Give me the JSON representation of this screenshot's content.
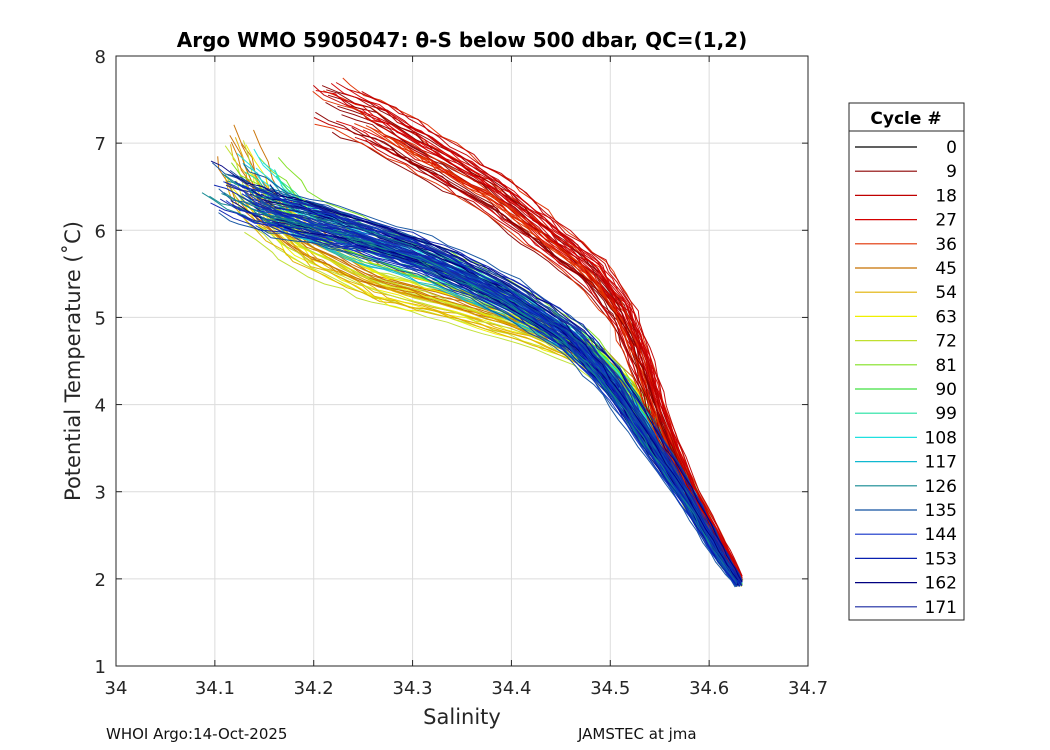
{
  "chart_data": {
    "type": "line",
    "title": "Argo WMO 5905047: θ-S below 500 dbar,  QC=(1,2)",
    "xlabel": "Salinity",
    "ylabel": "Potential Temperature (˚C)",
    "xlim": [
      34.0,
      34.7
    ],
    "ylim": [
      1,
      8
    ],
    "xticks": [
      34,
      34.1,
      34.2,
      34.3,
      34.4,
      34.5,
      34.6,
      34.7
    ],
    "xtick_labels": [
      "34",
      "34.1",
      "34.2",
      "34.3",
      "34.4",
      "34.5",
      "34.6",
      "34.7"
    ],
    "yticks": [
      1,
      2,
      3,
      4,
      5,
      6,
      7,
      8
    ],
    "ytick_labels": [
      "1",
      "2",
      "3",
      "4",
      "5",
      "6",
      "7",
      "8"
    ],
    "grid": true,
    "legend": {
      "title": "Cycle #",
      "placement": "right",
      "entries": [
        "0",
        "9",
        "18",
        "27",
        "36",
        "45",
        "54",
        "63",
        "72",
        "81",
        "90",
        "99",
        "108",
        "117",
        "126",
        "135",
        "144",
        "153",
        "162",
        "171"
      ],
      "colors": [
        "#000000",
        "#8b0000",
        "#c00000",
        "#d40000",
        "#e03000",
        "#c87000",
        "#e0b000",
        "#f0f000",
        "#c0e030",
        "#80e020",
        "#40e040",
        "#20e0a0",
        "#20e0e0",
        "#10b8d0",
        "#108890",
        "#1050a0",
        "#1030c8",
        "#0820b0",
        "#000080",
        "#1828a0"
      ]
    },
    "series_shape": {
      "note": "Approximate theta-S envelope per color group (salinity, temperature) in data units",
      "warm_red_group": {
        "colors": [
          "#8b0000",
          "#c00000",
          "#d40000",
          "#e03000"
        ],
        "path": [
          [
            34.2,
            7.5
          ],
          [
            34.26,
            7.2
          ],
          [
            34.32,
            6.8
          ],
          [
            34.38,
            6.4
          ],
          [
            34.43,
            5.95
          ],
          [
            34.48,
            5.5
          ],
          [
            34.51,
            5.05
          ],
          [
            34.53,
            4.5
          ],
          [
            34.55,
            3.8
          ],
          [
            34.58,
            3.0
          ],
          [
            34.61,
            2.4
          ],
          [
            34.63,
            2.0
          ]
        ]
      },
      "orange_yellow_group": {
        "colors": [
          "#c87000",
          "#e0b000",
          "#f0f000",
          "#c0e030"
        ],
        "path": [
          [
            34.11,
            7.0
          ],
          [
            34.14,
            6.3
          ],
          [
            34.19,
            5.8
          ],
          [
            34.26,
            5.4
          ],
          [
            34.34,
            5.15
          ],
          [
            34.42,
            4.85
          ],
          [
            34.48,
            4.55
          ],
          [
            34.52,
            4.1
          ],
          [
            34.55,
            3.5
          ],
          [
            34.58,
            2.9
          ],
          [
            34.61,
            2.3
          ],
          [
            34.63,
            1.95
          ]
        ]
      },
      "green_cyan_group": {
        "colors": [
          "#80e020",
          "#40e040",
          "#20e0a0",
          "#20e0e0",
          "#10b8d0"
        ],
        "path": [
          [
            34.13,
            6.8
          ],
          [
            34.18,
            6.2
          ],
          [
            34.26,
            5.8
          ],
          [
            34.34,
            5.5
          ],
          [
            34.41,
            5.1
          ],
          [
            34.47,
            4.7
          ],
          [
            34.51,
            4.2
          ],
          [
            34.55,
            3.6
          ],
          [
            34.58,
            3.0
          ],
          [
            34.61,
            2.35
          ],
          [
            34.63,
            1.95
          ]
        ]
      },
      "blue_group": {
        "colors": [
          "#108890",
          "#1050a0",
          "#1030c8",
          "#0820b0",
          "#000080",
          "#1828a0"
        ],
        "path": [
          [
            34.1,
            6.6
          ],
          [
            34.16,
            6.25
          ],
          [
            34.24,
            6.0
          ],
          [
            34.32,
            5.7
          ],
          [
            34.4,
            5.25
          ],
          [
            34.46,
            4.8
          ],
          [
            34.5,
            4.3
          ],
          [
            34.54,
            3.6
          ],
          [
            34.58,
            2.9
          ],
          [
            34.61,
            2.3
          ],
          [
            34.63,
            1.95
          ]
        ]
      }
    }
  },
  "footer": {
    "left": "WHOI Argo:14-Oct-2025",
    "right": "JAMSTEC at jma"
  }
}
